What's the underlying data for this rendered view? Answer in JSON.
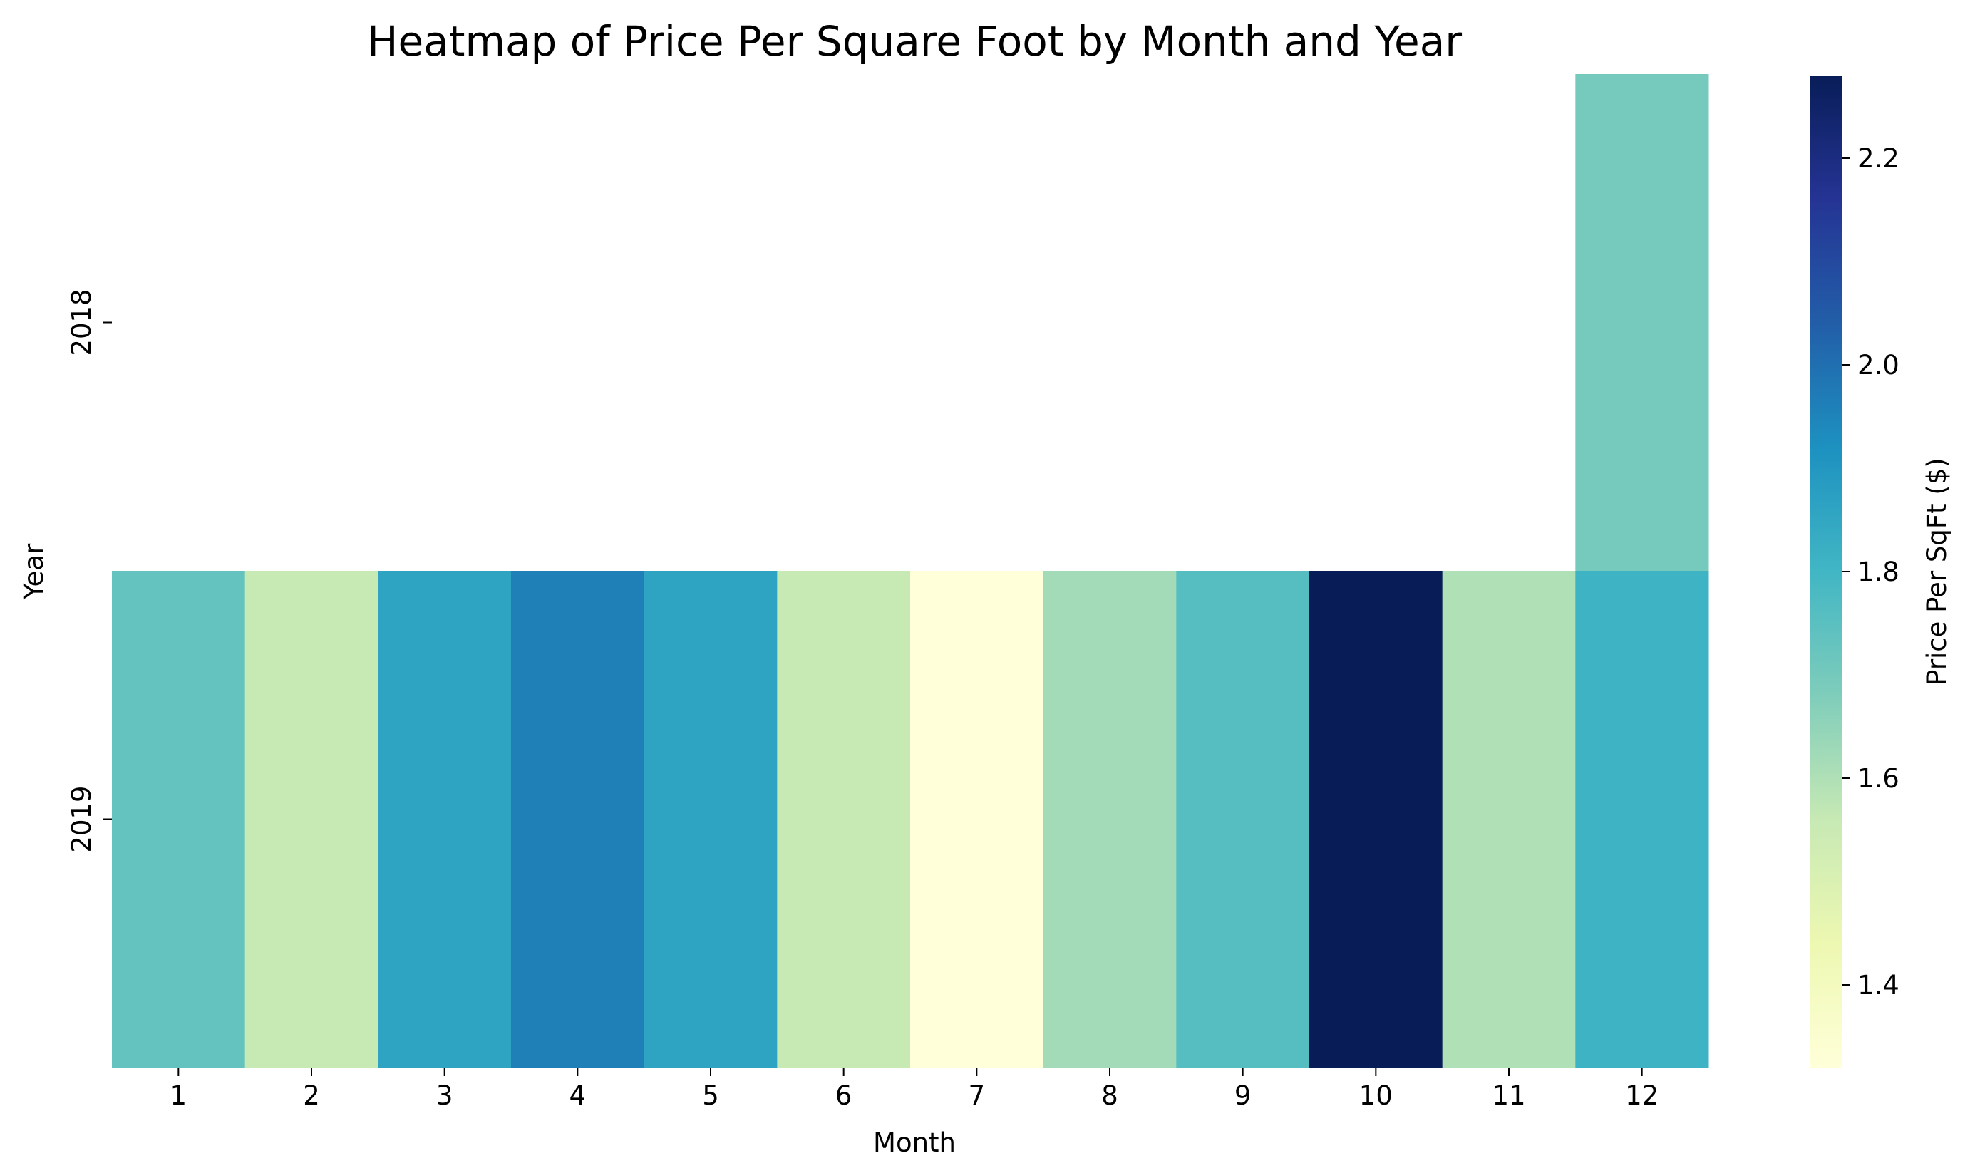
{
  "chart_data": {
    "type": "heatmap",
    "title": "Heatmap of Price Per Square Foot by Month and Year",
    "xlabel": "Month",
    "ylabel": "Year",
    "x_categories": [
      "1",
      "2",
      "3",
      "4",
      "5",
      "6",
      "7",
      "8",
      "9",
      "10",
      "11",
      "12"
    ],
    "y_categories": [
      "2018",
      "2019"
    ],
    "values": [
      [
        null,
        null,
        null,
        null,
        null,
        null,
        null,
        null,
        null,
        null,
        null,
        1.7
      ],
      [
        1.73,
        1.56,
        1.86,
        1.96,
        1.86,
        1.56,
        1.32,
        1.62,
        1.76,
        2.28,
        1.6,
        1.81
      ]
    ],
    "colorbar": {
      "label": "Price Per SqFt ($)",
      "range": [
        1.32,
        2.28
      ],
      "ticks": [
        1.4,
        1.6,
        1.8,
        2.0,
        2.2
      ],
      "tick_labels": [
        "1.4",
        "1.6",
        "1.8",
        "2.0",
        "2.2"
      ],
      "colormap": "YlGnBu",
      "color_stops": [
        "#ffffd9",
        "#edf8b1",
        "#c7e9b4",
        "#7fcdbb",
        "#41b6c4",
        "#1d91c0",
        "#225ea8",
        "#253494",
        "#081d58"
      ]
    },
    "grid": false
  }
}
